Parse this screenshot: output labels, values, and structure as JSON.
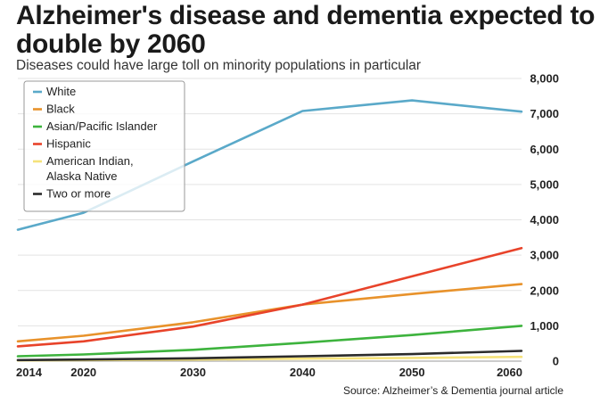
{
  "title": "Alzheimer's disease and dementia expected to double by 2060",
  "subtitle": "Diseases could have large toll on minority populations in particular",
  "source": "Source: Alzheimer’s & Dementia journal article",
  "chart_data": {
    "type": "line",
    "x": [
      2014,
      2020,
      2030,
      2040,
      2050,
      2060
    ],
    "x_tick_labels": [
      "2014",
      "2020",
      "2030",
      "2040",
      "2050",
      "2060"
    ],
    "y_tick_labels": [
      "0",
      "1,000",
      "2,000",
      "3,000",
      "4,000",
      "5,000",
      "6,000",
      "7,000",
      "8,000"
    ],
    "ylim": [
      0,
      8000
    ],
    "y_axis_side": "right",
    "grid": "horizontal",
    "legend_position": "top-left",
    "series": [
      {
        "name": "White",
        "color": "#5aa9c9",
        "values": [
          3720,
          4200,
          5650,
          7080,
          7380,
          7060
        ]
      },
      {
        "name": "Black",
        "color": "#e8922b",
        "values": [
          560,
          720,
          1100,
          1600,
          1900,
          2180
        ]
      },
      {
        "name": "Asian/Pacific Islander",
        "color": "#3db33d",
        "values": [
          140,
          190,
          320,
          520,
          740,
          1000
        ]
      },
      {
        "name": "Hispanic",
        "color": "#e8432a",
        "values": [
          420,
          560,
          980,
          1600,
          2400,
          3200
        ]
      },
      {
        "name": "American Indian, Alaska Native",
        "legend_lines": [
          "American Indian,",
          "Alaska Native"
        ],
        "color": "#f5e27a",
        "values": [
          20,
          30,
          45,
          70,
          90,
          120
        ]
      },
      {
        "name": "Two or more",
        "color": "#2b2b2b",
        "values": [
          30,
          45,
          80,
          140,
          200,
          290
        ]
      }
    ]
  }
}
